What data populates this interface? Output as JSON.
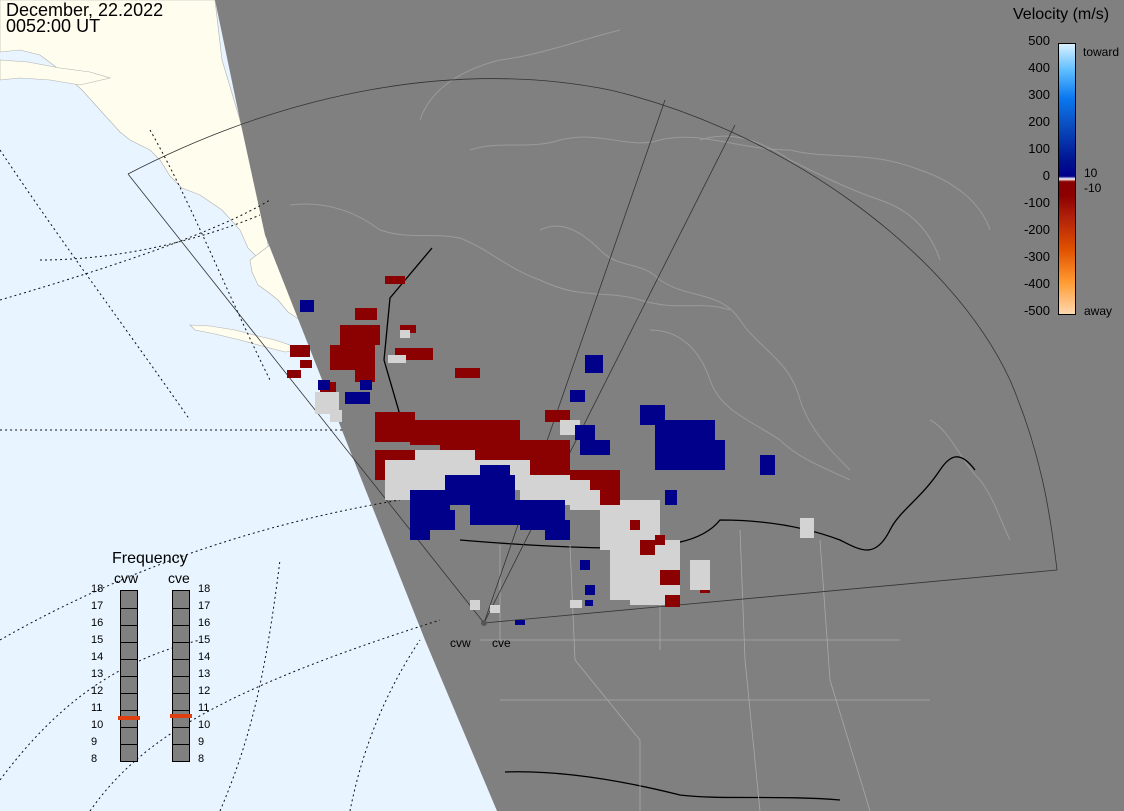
{
  "title": {
    "date": "December, 22.2022",
    "time": "0052:00 UT"
  },
  "velocity": {
    "title": "Velocity (m/s)",
    "ticks": [
      "500",
      "400",
      "300",
      "200",
      "100",
      "0",
      "-100",
      "-200",
      "-300",
      "-400",
      "-500"
    ],
    "side_ticks": [
      "10",
      "-10"
    ],
    "toward_label": "toward",
    "away_label": "away"
  },
  "frequency": {
    "title": "Frequency",
    "radars": [
      {
        "name": "cvw",
        "selected": 10.5
      },
      {
        "name": "cve",
        "selected": 10.6
      }
    ],
    "levels": [
      "18",
      "17",
      "16",
      "15",
      "14",
      "13",
      "12",
      "11",
      "10",
      "9",
      "8"
    ]
  },
  "radar_sites": [
    "cvw",
    "cve"
  ],
  "colors": {
    "ocean": "#e8f4ff",
    "land": "#fffdee",
    "night": "#808080",
    "toward": "#00008b",
    "away": "#8b0000",
    "ground_scatter": "#d3d3d3",
    "freq_marker": "#e04010"
  }
}
